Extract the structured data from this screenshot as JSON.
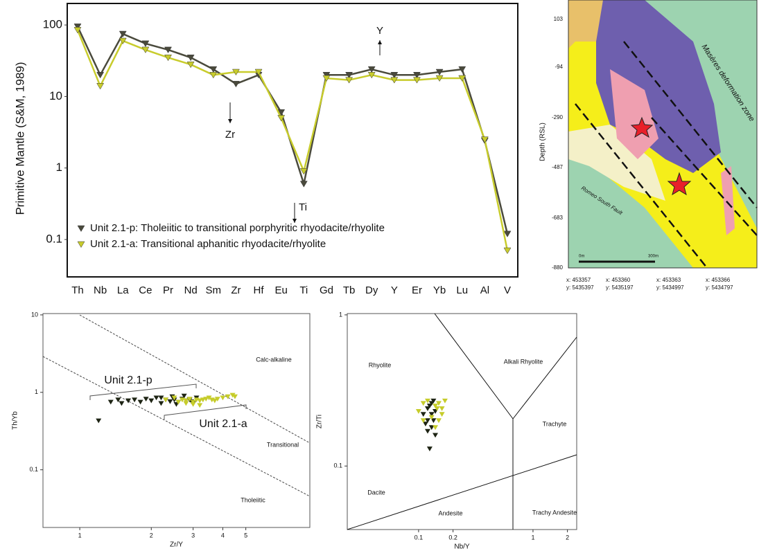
{
  "chart_data": [
    {
      "type": "line",
      "y_label": "Primitive Mantle (S&M, 1989)",
      "log_y": true,
      "categories": [
        "Th",
        "Nb",
        "La",
        "Ce",
        "Pr",
        "Nd",
        "Sm",
        "Zr",
        "Hf",
        "Eu",
        "Ti",
        "Gd",
        "Tb",
        "Dy",
        "Y",
        "Er",
        "Yb",
        "Lu",
        "Al",
        "V"
      ],
      "series": [
        {
          "name": "Unit 2.1-p: Tholeiitic to transitional porphyritic rhyodacite/rhyolite",
          "color": "#4a4a3c",
          "values": [
            95,
            20,
            75,
            55,
            45,
            35,
            24,
            15,
            20,
            6,
            0.6,
            20,
            20,
            24,
            20,
            20,
            22,
            24,
            2.4,
            0.12
          ]
        },
        {
          "name": "Unit 2.1-a: Transitional aphanitic rhyodacite/rhyolite",
          "color": "#c8cc2c",
          "values": [
            85,
            14,
            60,
            45,
            35,
            28,
            20,
            22,
            22,
            5,
            0.9,
            18,
            17,
            20,
            17,
            17,
            18,
            18,
            2.5,
            0.07
          ]
        }
      ],
      "ylim": [
        0.03,
        200
      ],
      "yticks": [
        0.1,
        1,
        10,
        100
      ],
      "annotations": [
        "Zr",
        "Y",
        "Ti"
      ]
    },
    {
      "type": "scatter",
      "x_label": "Zr/Y",
      "y_label": "Th/Yb",
      "log_x": true,
      "log_y": true,
      "series": [
        {
          "name": "Unit 2.1-p",
          "color": "#1e2414",
          "x": [
            1.2,
            1.35,
            1.45,
            1.5,
            1.6,
            1.7,
            1.8,
            1.9,
            2.0,
            2.1,
            2.2,
            2.3,
            2.4,
            2.45,
            2.5,
            2.6,
            2.7,
            2.8,
            2.9,
            3.0,
            3.1,
            2.55,
            2.75,
            2.95,
            2.2
          ],
          "values": [
            0.43,
            0.75,
            0.8,
            0.72,
            0.78,
            0.8,
            0.75,
            0.82,
            0.78,
            0.85,
            0.72,
            0.8,
            0.76,
            0.88,
            0.8,
            0.75,
            0.82,
            0.78,
            0.8,
            0.72,
            0.85,
            0.7,
            0.9,
            0.76,
            0.85
          ]
        },
        {
          "name": "Unit 2.1-a",
          "color": "#c6cc2a",
          "x": [
            2.3,
            2.5,
            2.6,
            2.7,
            2.8,
            2.9,
            3.0,
            3.1,
            3.2,
            3.3,
            3.4,
            3.5,
            3.6,
            3.8,
            4.0,
            4.2,
            4.4,
            4.5,
            3.0,
            2.8,
            3.2,
            3.7
          ],
          "values": [
            0.8,
            0.85,
            0.75,
            0.8,
            0.78,
            0.82,
            0.7,
            0.8,
            0.78,
            0.8,
            0.82,
            0.85,
            0.8,
            0.82,
            0.85,
            0.88,
            0.92,
            0.88,
            0.75,
            0.72,
            0.68,
            0.78
          ]
        }
      ],
      "xlim": [
        0.7,
        9.3
      ],
      "xticks": [
        1,
        2,
        3,
        4,
        5
      ],
      "ylim": [
        0.018,
        10.4
      ],
      "yticks": [
        0.1,
        1,
        10
      ],
      "annotations": [
        "Calc-alkaline",
        "Transitional",
        "Tholeiitic"
      ]
    },
    {
      "type": "scatter",
      "x_label": "Nb/Y",
      "y_label": "Zr/Ti",
      "log_x": true,
      "log_y": true,
      "series": [
        {
          "color": "#1e2414",
          "x": [
            0.11,
            0.12,
            0.125,
            0.13,
            0.135,
            0.14,
            0.12,
            0.13,
            0.115,
            0.14,
            0.125,
            0.13,
            0.135,
            0.12
          ],
          "values": [
            0.22,
            0.24,
            0.25,
            0.26,
            0.27,
            0.23,
            0.2,
            0.18,
            0.19,
            0.16,
            0.13,
            0.22,
            0.2,
            0.17
          ]
        },
        {
          "color": "#c6cc2a",
          "x": [
            0.1,
            0.11,
            0.12,
            0.14,
            0.145,
            0.15,
            0.16,
            0.17,
            0.13,
            0.14,
            0.15,
            0.11,
            0.16
          ],
          "values": [
            0.23,
            0.26,
            0.27,
            0.25,
            0.24,
            0.26,
            0.22,
            0.27,
            0.21,
            0.18,
            0.2,
            0.2,
            0.24
          ]
        }
      ],
      "xlim": [
        0.0238,
        2.41
      ],
      "xticks": [
        0.1,
        0.2,
        1,
        2
      ],
      "ylim": [
        0.038,
        1.02
      ],
      "yticks": [
        0.1,
        1
      ],
      "annotations": [
        "Rhyolite",
        "Alkali Rhyolite",
        "Trachyte",
        "Dacite",
        "Andesite",
        "Trachy Andesite"
      ]
    }
  ],
  "map": {
    "depth_label": "Depth (RSL)",
    "depth_ticks": [
      103,
      -94,
      -290,
      -487,
      -683,
      -880
    ],
    "labels": [
      "Masères deformation zone",
      "Romeo South Fault"
    ],
    "scale": [
      "0m",
      "300m"
    ],
    "coordinates": [
      {
        "x": "x: 453357",
        "y": "y: 5435397"
      },
      {
        "x": "x: 453360",
        "y": "y: 5435197"
      },
      {
        "x": "x: 453363",
        "y": "y: 5434997"
      },
      {
        "x": "x: 453366",
        "y": "y: 5434797"
      }
    ]
  }
}
